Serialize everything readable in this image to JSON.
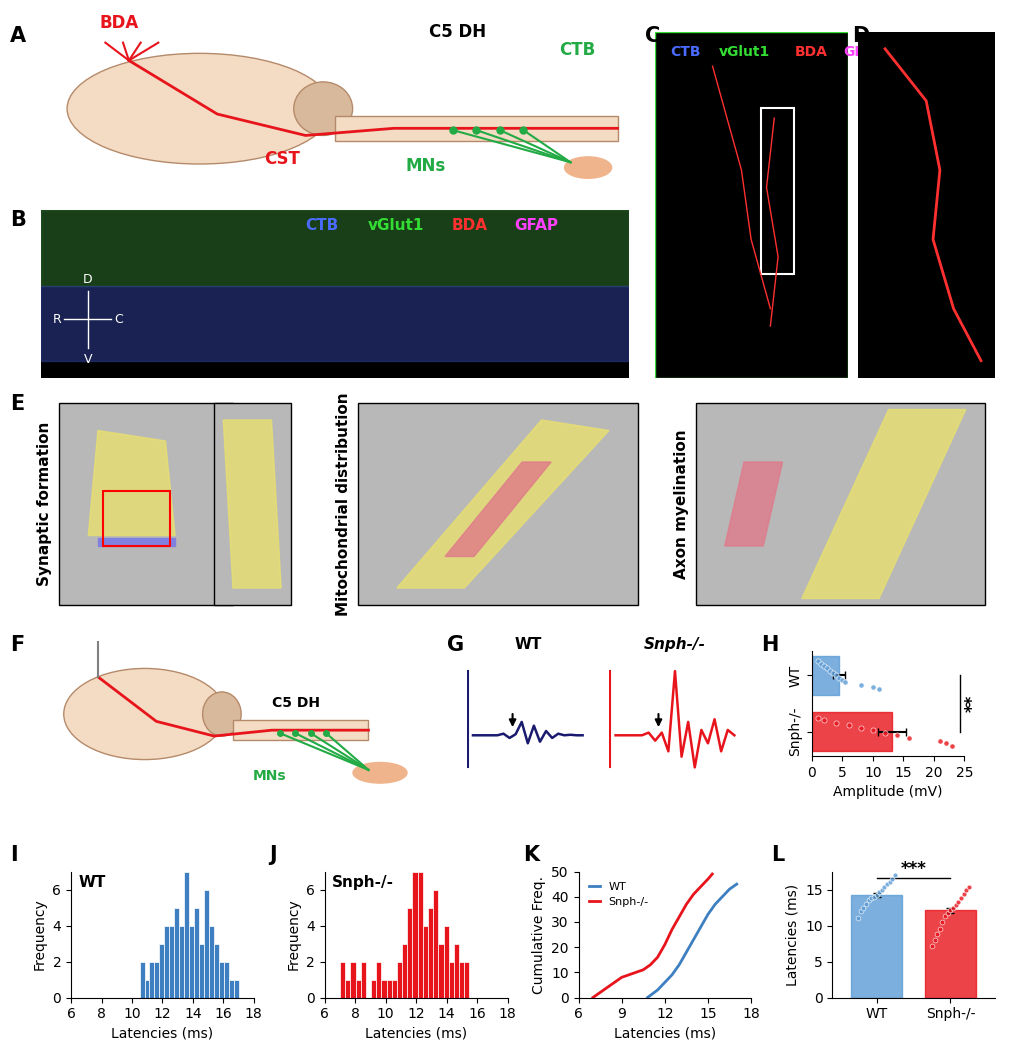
{
  "panel_labels": [
    "A",
    "B",
    "C",
    "D",
    "E",
    "F",
    "G",
    "H",
    "I",
    "J",
    "K",
    "L"
  ],
  "A": {
    "texts": {
      "tracer1": "BDA",
      "site": "C5 DH",
      "tracer2": "CTB",
      "tract": "CST",
      "neurons": "MNs"
    }
  },
  "B": {
    "channels": [
      {
        "name": "CTB",
        "color": "#4a6bff"
      },
      {
        "name": "vGlut1",
        "color": "#33dd33"
      },
      {
        "name": "BDA",
        "color": "#ff3030"
      },
      {
        "name": "GFAP",
        "color": "#ff40ff"
      }
    ],
    "orientation": {
      "up": "D",
      "down": "V",
      "left": "R",
      "right": "C"
    }
  },
  "C": {
    "channels": [
      {
        "name": "CTB",
        "color": "#4a6bff"
      },
      {
        "name": "vGlut1",
        "color": "#33dd33"
      },
      {
        "name": "BDA",
        "color": "#ff3030"
      },
      {
        "name": "GFAP",
        "color": "#ff40ff"
      }
    ]
  },
  "E": {
    "titles": [
      "Synaptic formation",
      "Mitochondrial distribution",
      "Axon myelination"
    ]
  },
  "F": {
    "texts": {
      "site": "C5 DH",
      "neurons": "MNs"
    }
  },
  "G": {
    "traces": [
      {
        "name": "WT",
        "color": "#1a1a6e",
        "values": [
          0,
          0,
          0,
          0,
          0,
          0.3,
          -0.5,
          0.2,
          2.5,
          -1.5,
          1.8,
          -1.2,
          0.8,
          -0.5,
          0.3,
          0,
          0.1,
          0,
          0
        ]
      },
      {
        "name": "Snph-/-",
        "color": "#e8141c",
        "values": [
          0,
          0,
          0,
          0,
          0,
          0.5,
          -1,
          0.5,
          -3,
          12,
          -4,
          2.5,
          -6,
          1,
          -1.5,
          3,
          -3,
          1,
          0
        ]
      }
    ]
  },
  "chart_data": [
    {
      "type": "bar",
      "orientation": "horizontal",
      "categories": [
        "WT",
        "Snph-/-"
      ],
      "values": [
        4.5,
        13.2
      ],
      "errors": [
        1.0,
        2.3
      ],
      "colors": [
        "#5b9bd5",
        "#e8141c"
      ],
      "points": [
        [
          1,
          1.5,
          2,
          2.5,
          3,
          3.5,
          4,
          4.5,
          5,
          5.5,
          8,
          10,
          11
        ],
        [
          1,
          2,
          4,
          6,
          8,
          10,
          12,
          14,
          16,
          21,
          22,
          23
        ]
      ],
      "xlabel": "Amplitude (mV)",
      "xlim": [
        0,
        25
      ],
      "xticks": [
        0,
        5,
        10,
        15,
        20,
        25
      ],
      "annotations": [
        "**"
      ]
    },
    {
      "type": "histogram",
      "title": "WT",
      "color": "#3d7fc1",
      "bins": [
        10.5,
        10.825,
        11.15,
        11.475,
        11.8,
        12.125,
        12.45,
        12.775,
        13.1,
        13.425,
        13.75,
        14.075,
        14.4,
        14.725,
        15.05,
        15.375,
        15.7,
        16.025,
        16.35,
        16.675,
        17.0
      ],
      "counts": [
        2,
        1,
        2,
        2,
        3,
        4,
        4,
        5,
        4,
        7,
        4,
        5,
        3,
        6,
        4,
        3,
        2,
        2,
        1,
        1
      ],
      "xlabel": "Latencies (ms)",
      "ylabel": "Frequency",
      "xlim": [
        6,
        18
      ],
      "xticks": [
        6,
        8,
        10,
        12,
        14,
        16,
        18
      ],
      "ylim": [
        0,
        7
      ],
      "yticks": [
        0,
        2,
        4,
        6
      ]
    },
    {
      "type": "histogram",
      "title": "Snph-/-",
      "color": "#e8141c",
      "bins": [
        7.0,
        7.34,
        7.68,
        8.02,
        8.36,
        8.7,
        9.04,
        9.38,
        9.72,
        10.06,
        10.4,
        10.74,
        11.08,
        11.42,
        11.76,
        12.1,
        12.44,
        12.78,
        13.12,
        13.46,
        13.8,
        14.14,
        14.48,
        14.82,
        15.16,
        15.5
      ],
      "counts": [
        2,
        1,
        2,
        1,
        2,
        0,
        1,
        2,
        1,
        1,
        1,
        2,
        3,
        5,
        7,
        7,
        4,
        5,
        6,
        3,
        4,
        2,
        3,
        2,
        2
      ],
      "xlabel": "Latencies (ms)",
      "ylabel": "Frequency",
      "xlim": [
        6,
        18
      ],
      "xticks": [
        6,
        8,
        10,
        12,
        14,
        16,
        18
      ],
      "ylim": [
        0,
        7
      ],
      "yticks": [
        0,
        2,
        4,
        6
      ]
    },
    {
      "type": "line",
      "legend": "upper left",
      "series": [
        {
          "name": "WT",
          "color": "#3d7fc1",
          "x": [
            10.8,
            11.5,
            12.0,
            12.5,
            13.0,
            13.5,
            14.0,
            14.5,
            15.0,
            15.5,
            16.0,
            16.5,
            17.0
          ],
          "values": [
            0,
            3,
            6,
            9,
            13,
            18,
            23,
            28,
            33,
            37,
            40,
            43,
            45
          ]
        },
        {
          "name": "Snph-/-",
          "color": "#e8141c",
          "x": [
            7.0,
            7.5,
            8.0,
            8.5,
            9.0,
            9.5,
            10.0,
            10.5,
            11.0,
            11.5,
            12.0,
            12.5,
            13.0,
            13.5,
            14.0,
            14.5,
            15.0,
            15.3
          ],
          "values": [
            0,
            2,
            4,
            6,
            8,
            9,
            10,
            11,
            13,
            16,
            21,
            27,
            32,
            37,
            41,
            44,
            47,
            49
          ]
        }
      ],
      "xlabel": "Latencies (ms)",
      "ylabel": "Cumulative Freq.",
      "xlim": [
        6,
        18
      ],
      "xticks": [
        6,
        9,
        12,
        15,
        18
      ],
      "ylim": [
        0,
        50
      ],
      "yticks": [
        0,
        10,
        20,
        30,
        40,
        50
      ]
    },
    {
      "type": "bar",
      "categories": [
        "WT",
        "Snph-/-"
      ],
      "values": [
        14.2,
        12.1
      ],
      "errors": [
        0.3,
        0.4
      ],
      "colors": [
        "#5b9bd5",
        "#e8141c"
      ],
      "points": [
        [
          11,
          12,
          12.5,
          13,
          13.5,
          13.8,
          14,
          14.3,
          14.6,
          15,
          15.3,
          15.7,
          16,
          16.5,
          17
        ],
        [
          7.2,
          8,
          8.8,
          9.5,
          10.5,
          11.3,
          11.8,
          12.1,
          12.4,
          12.8,
          13.2,
          13.8,
          14.4,
          15,
          15.4
        ]
      ],
      "ylabel": "Latencies (ms)",
      "ylim": [
        0,
        17.5
      ],
      "yticks": [
        0,
        5,
        10,
        15
      ],
      "annotations": [
        "***"
      ]
    }
  ]
}
